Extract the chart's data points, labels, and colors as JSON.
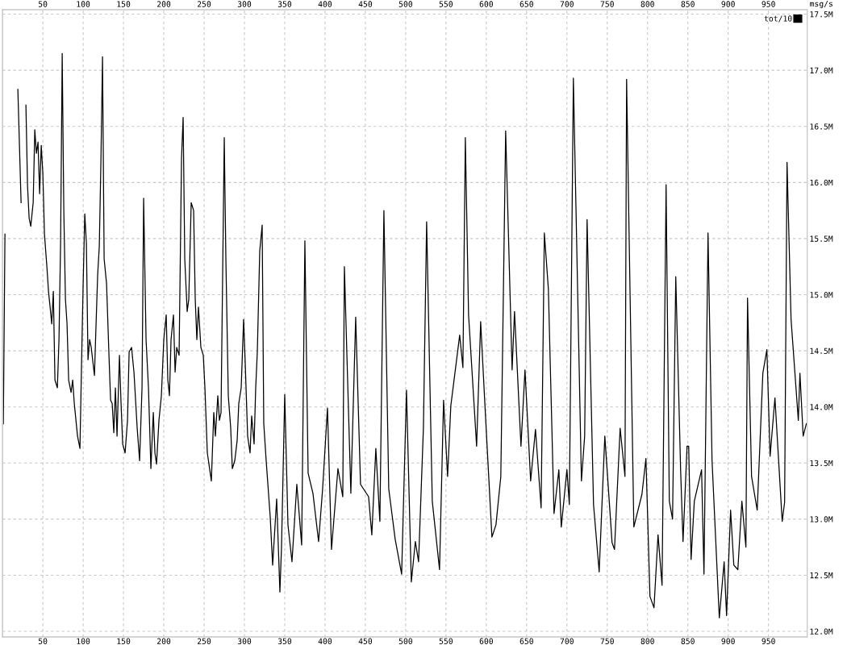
{
  "chart_data": {
    "type": "line",
    "ylabel": "msg/s",
    "legend": "top right",
    "grid": true,
    "line_style": "solid",
    "xlim": [
      0,
      998
    ],
    "xticks": [
      50,
      100,
      150,
      200,
      250,
      300,
      350,
      400,
      450,
      500,
      550,
      600,
      650,
      700,
      750,
      800,
      850,
      900,
      950
    ],
    "x2lim": [
      0,
      998
    ],
    "x2ticks": [
      50,
      100,
      150,
      200,
      250,
      300,
      350,
      400,
      450,
      500,
      550,
      600,
      650,
      700,
      750,
      800,
      850,
      900,
      950
    ],
    "ylim": [
      11.95,
      17.54
    ],
    "yticks": [
      {
        "value": 12.0,
        "label": "12.0M"
      },
      {
        "value": 12.5,
        "label": "12.5M"
      },
      {
        "value": 13.0,
        "label": "13.0M"
      },
      {
        "value": 13.5,
        "label": "13.5M"
      },
      {
        "value": 14.0,
        "label": "14.0M"
      },
      {
        "value": 14.5,
        "label": "14.5M"
      },
      {
        "value": 15.0,
        "label": "15.0M"
      },
      {
        "value": 15.5,
        "label": "15.5M"
      },
      {
        "value": 16.0,
        "label": "16.0M"
      },
      {
        "value": 16.5,
        "label": "16.5M"
      },
      {
        "value": 17.0,
        "label": "17.0M"
      },
      {
        "value": 17.5,
        "label": "17.5M"
      }
    ],
    "series": [
      {
        "name": "tot/10",
        "color": "#000000",
        "x": [
          1,
          3,
          5,
          17,
          19,
          23,
          25,
          27,
          29,
          31,
          33,
          35,
          38,
          40,
          42,
          44,
          46,
          48,
          50,
          52,
          55,
          57,
          59,
          61,
          63,
          65,
          68,
          70,
          72,
          74,
          76,
          78,
          80,
          82,
          85,
          87,
          89,
          93,
          96,
          98,
          100,
          102,
          104,
          106,
          108,
          110,
          114,
          116,
          118,
          120,
          122,
          124,
          126,
          129,
          132,
          134,
          136,
          138,
          140,
          142,
          145,
          147,
          149,
          152,
          155,
          157,
          160,
          163,
          167,
          170,
          173,
          175,
          178,
          181,
          184,
          187,
          189,
          191,
          194,
          197,
          200,
          203,
          205,
          207,
          209,
          212,
          214,
          216,
          219,
          222,
          224,
          226,
          229,
          231,
          234,
          237,
          239,
          241,
          243,
          246,
          249,
          251,
          254,
          259,
          262,
          264,
          267,
          269,
          271,
          273,
          275,
          277,
          280,
          283,
          285,
          288,
          291,
          293,
          296,
          299,
          301,
          304,
          307,
          309,
          312,
          314,
          316,
          319,
          322,
          324,
          327,
          332,
          335,
          340,
          344,
          346,
          350,
          354,
          359,
          365,
          371,
          375,
          379,
          385,
          392,
          397,
          403,
          408,
          416,
          422,
          424,
          432,
          438,
          444,
          454,
          458,
          463,
          468,
          473,
          479,
          487,
          495,
          501,
          507,
          512,
          516,
          522,
          526,
          533,
          542,
          547,
          552,
          556,
          567,
          571,
          574,
          578,
          588,
          593,
          599,
          607,
          612,
          618,
          624,
          632,
          635,
          643,
          648,
          655,
          661,
          668,
          672,
          677,
          684,
          690,
          693,
          700,
          703,
          708,
          718,
          722,
          725,
          733,
          740,
          747,
          756,
          759,
          766,
          772,
          774,
          783,
          793,
          798,
          803,
          808,
          813,
          818,
          823,
          827,
          831,
          835,
          841,
          844,
          849,
          851,
          854,
          858,
          867,
          870,
          875,
          880,
          889,
          895,
          898,
          903,
          907,
          912,
          917,
          922,
          924,
          929,
          936,
          943,
          948,
          952,
          958,
          967,
          970,
          973,
          978,
          987,
          989,
          993,
          997
        ],
        "values": [
          13.85,
          15.54,
          null,
          null,
          16.83,
          15.82,
          null,
          null,
          16.69,
          15.97,
          15.68,
          15.61,
          15.82,
          16.47,
          16.26,
          16.36,
          15.9,
          16.33,
          16.08,
          15.54,
          15.25,
          15.03,
          14.89,
          14.74,
          15.03,
          14.24,
          14.17,
          14.6,
          15.46,
          17.15,
          15.75,
          14.96,
          14.74,
          14.24,
          14.13,
          14.24,
          14.03,
          13.74,
          13.63,
          14.39,
          15.1,
          15.72,
          15.46,
          14.42,
          14.6,
          14.53,
          14.28,
          14.74,
          15.18,
          15.43,
          16.18,
          17.12,
          15.32,
          15.1,
          14.46,
          14.06,
          14.03,
          13.77,
          14.17,
          13.74,
          14.46,
          14.03,
          13.67,
          13.59,
          13.88,
          14.49,
          14.53,
          14.31,
          13.81,
          13.52,
          14.17,
          15.86,
          14.6,
          14.17,
          13.45,
          13.95,
          13.59,
          13.49,
          13.88,
          14.1,
          14.6,
          14.82,
          14.24,
          14.1,
          14.6,
          14.82,
          14.31,
          14.53,
          14.46,
          16.22,
          16.58,
          15.32,
          14.85,
          14.96,
          15.82,
          15.75,
          14.96,
          14.6,
          14.89,
          14.53,
          14.46,
          14.17,
          13.59,
          13.34,
          13.95,
          13.74,
          14.1,
          13.88,
          13.95,
          15.18,
          16.4,
          15.32,
          14.1,
          13.81,
          13.45,
          13.52,
          13.7,
          14.03,
          14.17,
          14.78,
          14.39,
          13.74,
          13.59,
          13.92,
          13.67,
          14.17,
          14.49,
          15.39,
          15.62,
          13.85,
          13.52,
          13.02,
          12.59,
          13.18,
          12.35,
          12.75,
          14.11,
          12.95,
          12.62,
          13.31,
          12.77,
          15.48,
          13.41,
          13.23,
          12.8,
          13.27,
          13.99,
          12.73,
          13.45,
          13.2,
          15.25,
          13.23,
          14.8,
          13.31,
          13.2,
          12.86,
          13.63,
          12.98,
          15.75,
          13.27,
          12.82,
          12.51,
          14.15,
          12.44,
          12.8,
          12.62,
          13.81,
          15.65,
          13.16,
          12.55,
          14.06,
          13.38,
          14.01,
          14.64,
          14.35,
          16.4,
          14.82,
          13.65,
          14.76,
          13.92,
          12.84,
          12.95,
          13.38,
          16.46,
          14.33,
          14.85,
          13.65,
          14.33,
          13.34,
          13.8,
          13.1,
          15.55,
          15.05,
          13.05,
          13.44,
          12.93,
          13.44,
          13.13,
          16.93,
          13.34,
          13.74,
          15.67,
          13.13,
          12.53,
          13.74,
          12.79,
          12.73,
          13.81,
          13.38,
          16.92,
          12.93,
          13.22,
          13.54,
          12.31,
          12.21,
          12.86,
          12.41,
          15.98,
          13.16,
          13.0,
          15.16,
          13.44,
          12.8,
          13.65,
          13.65,
          12.64,
          13.16,
          13.44,
          12.51,
          15.55,
          13.52,
          12.12,
          12.62,
          12.14,
          13.08,
          12.59,
          12.55,
          13.16,
          12.75,
          14.97,
          13.38,
          13.08,
          14.3,
          14.51,
          13.56,
          14.08,
          12.98,
          13.15,
          16.18,
          14.78,
          13.88,
          14.3,
          13.74,
          13.85
        ]
      }
    ]
  }
}
